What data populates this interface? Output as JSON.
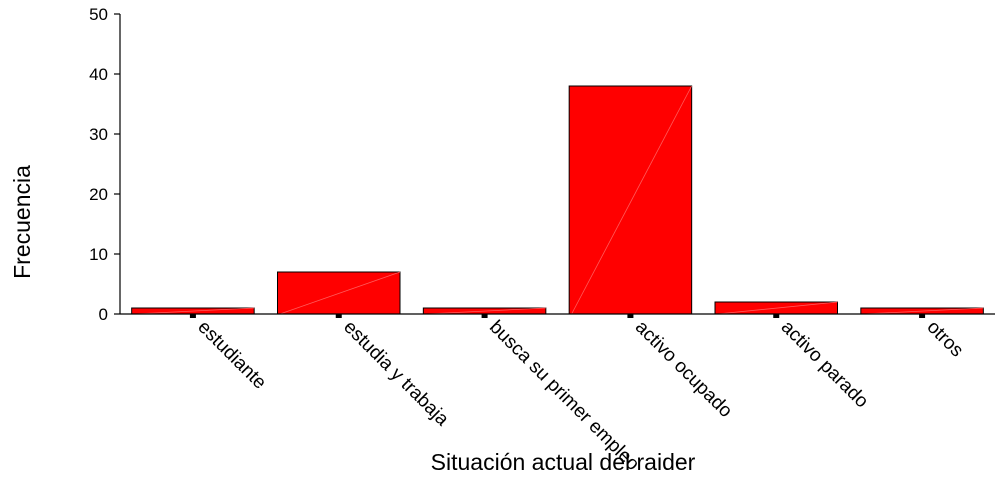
{
  "chart_data": {
    "type": "bar",
    "categories": [
      "estudiante",
      "estudia y trabaja",
      "busca su primer empleo",
      "activo ocupado",
      "activo parado",
      "otros"
    ],
    "values": [
      1,
      7,
      1,
      38,
      2,
      1
    ],
    "title": "",
    "xlabel": "Situación actual del raider",
    "ylabel": "Frecuencia",
    "ylim": [
      0,
      50
    ],
    "yticks": [
      0,
      10,
      20,
      30,
      40,
      50
    ],
    "grid": false,
    "bar_color": "#ff0000"
  }
}
